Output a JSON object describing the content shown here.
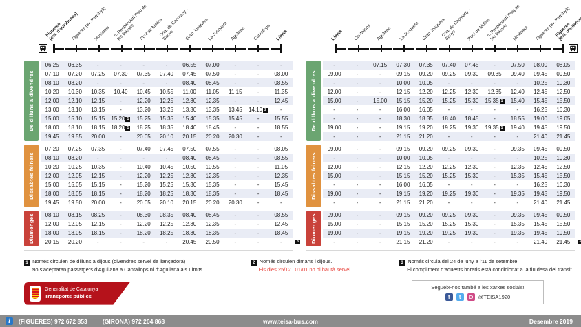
{
  "colors": {
    "weekday": "#6ba571",
    "saturday": "#e0923f",
    "sunday": "#c9423a",
    "stripe": "#e9ecf5",
    "footnote_red": "#e8433c",
    "brand_red": "#b5121b",
    "bar_gray": "#8c8c8c",
    "info_blue": "#2878c8"
  },
  "panels": [
    {
      "direction": "outbound",
      "bus": "left",
      "stops": [
        {
          "t": "Figueres\n(est. d'autobusos)",
          "b": true
        },
        {
          "t": "Figueres (av. Perpinyà)",
          "b": false
        },
        {
          "t": "Hostalets",
          "b": false
        },
        {
          "t": "c. Penitenciari Puig de\nles Basses",
          "b": false
        },
        {
          "t": "Pont de Molins",
          "b": false
        },
        {
          "t": "Crta. de Capmany -\nBanys",
          "b": false
        },
        {
          "t": "Gran Jonquera",
          "b": false
        },
        {
          "t": "La Jonquera",
          "b": false
        },
        {
          "t": "Agullana",
          "b": false
        },
        {
          "t": "Cantallops",
          "b": false
        },
        {
          "t": "Límits",
          "b": true
        }
      ],
      "sections": [
        {
          "key": "weekday",
          "label": "De dilluns a divendres",
          "rows": [
            [
              "06.25",
              "06.35",
              "-",
              "-",
              "-",
              "-",
              "06.55",
              "07.00",
              "-",
              "-",
              "-"
            ],
            [
              "07.10",
              "07.20",
              "07.25",
              "07.30",
              "07.35",
              "07.40",
              "07.45",
              "07.50",
              "-",
              "-",
              "08.00"
            ],
            [
              "08.10",
              "08.20",
              "-",
              "-",
              "-",
              "-",
              "08.40",
              "08.45",
              "-",
              "-",
              "08.55"
            ],
            [
              "10.20",
              "10.30",
              "10.35",
              "10.40",
              "10.45",
              "10.55",
              "11.00",
              "11.05",
              "11.15",
              "-",
              "11.35"
            ],
            [
              "12.00",
              "12.10",
              "12.15",
              "-",
              "12.20",
              "12.25",
              "12.30",
              "12.35",
              "-",
              "-",
              "12.45"
            ],
            [
              "13.00",
              "13.10",
              "13.15",
              "-",
              "13.20",
              "13.25",
              "13.30",
              "13.35",
              "13.45",
              "14.10|2",
              "-"
            ],
            [
              "15.00",
              "15.10",
              "15.15",
              "15.20|1",
              "15.25",
              "15.35",
              "15.40",
              "15.35",
              "15.45",
              "-",
              "15.55"
            ],
            [
              "18.00",
              "18.10",
              "18.15",
              "18.20|1",
              "18.25",
              "18.35",
              "18.40",
              "18.45",
              "-",
              "-",
              "18.55"
            ],
            [
              "19.45",
              "19.55",
              "20.00",
              "-",
              "20.05",
              "20.10",
              "20.15",
              "20.20",
              "20.30",
              "-",
              "-"
            ]
          ]
        },
        {
          "key": "saturday",
          "label": "Dissabtes feiners",
          "rows": [
            [
              "07.20",
              "07.25",
              "07.35",
              "-",
              "07.40",
              "07.45",
              "07.50",
              "07.55",
              "-",
              "-",
              "08.05"
            ],
            [
              "08.10",
              "08.20",
              "-",
              "-",
              "-",
              "-",
              "08.40",
              "08.45",
              "-",
              "-",
              "08.55"
            ],
            [
              "10.20",
              "10.25",
              "10.35",
              "-",
              "10.40",
              "10.45",
              "10.50",
              "10.55",
              "-",
              "-",
              "11.05"
            ],
            [
              "12.00",
              "12.05",
              "12.15",
              "-",
              "12.20",
              "12.25",
              "12.30",
              "12.35",
              "-",
              "-",
              "12.35"
            ],
            [
              "15.00",
              "15.05",
              "15.15",
              "-",
              "15.20",
              "15.25",
              "15.30",
              "15.35",
              "-",
              "-",
              "15.45"
            ],
            [
              "18.00",
              "18.05",
              "18.15",
              "-",
              "18.20",
              "18.25",
              "18.30",
              "18.35",
              "-",
              "-",
              "18.45"
            ],
            [
              "19.45",
              "19.50",
              "20.00",
              "-",
              "20.05",
              "20.10",
              "20.15",
              "20.20",
              "20.30",
              "-",
              "-"
            ]
          ]
        },
        {
          "key": "sunday",
          "label": "Diumenges",
          "end_marker": "3",
          "rows": [
            [
              "08.10",
              "08.15",
              "08.25",
              "-",
              "08.30",
              "08.35",
              "08.40",
              "08.45",
              "-",
              "-",
              "08.55"
            ],
            [
              "12.00",
              "12.05",
              "12.15",
              "-",
              "12.20",
              "12.25",
              "12.30",
              "12.35",
              "-",
              "-",
              "12.45"
            ],
            [
              "18.00",
              "18.05",
              "18.15",
              "-",
              "18.20",
              "18.25",
              "18.30",
              "18.35",
              "-",
              "-",
              "18.45"
            ],
            [
              "20.15",
              "20.20",
              "-",
              "-",
              "-",
              "-",
              "20.45",
              "20.50",
              "-",
              "-",
              "-"
            ]
          ]
        }
      ]
    },
    {
      "direction": "return",
      "bus": "right",
      "stops": [
        {
          "t": "Límits",
          "b": true
        },
        {
          "t": "Cantallops",
          "b": false
        },
        {
          "t": "Agullana",
          "b": false
        },
        {
          "t": "La Jonquera",
          "b": false
        },
        {
          "t": "Gran Jonquera",
          "b": false
        },
        {
          "t": "Crta. de Capmany -\nBanys",
          "b": false
        },
        {
          "t": "Pont de Molins",
          "b": false
        },
        {
          "t": "c. Penitenciari Puig de\nles Basses",
          "b": false
        },
        {
          "t": "Hostalets",
          "b": false
        },
        {
          "t": "Figueres (av. Perpinyà)",
          "b": false
        },
        {
          "t": "Figueres\n(est. d'autobusos)",
          "b": true
        }
      ],
      "sections": [
        {
          "key": "weekday",
          "label": "De dilluns a divendres",
          "rows": [
            [
              "-",
              "-",
              "07.15",
              "07.30",
              "07.35",
              "07.40",
              "07.45",
              "-",
              "07.50",
              "08.00",
              "08.05"
            ],
            [
              "09.00",
              "-",
              "-",
              "09.15",
              "09.20",
              "09.25",
              "09.30",
              "09.35",
              "09.40",
              "09.45",
              "09.50"
            ],
            [
              "-",
              "-",
              "-",
              "10.00",
              "10.05",
              "-",
              "-",
              "-",
              "-",
              "10.25",
              "10.30"
            ],
            [
              "12.00",
              "-",
              "-",
              "12.15",
              "12.20",
              "12.25",
              "12.30",
              "12.35",
              "12.40",
              "12.45",
              "12.50"
            ],
            [
              "15.00",
              "-",
              "15.00",
              "15.15",
              "15.20",
              "15.25",
              "15.30",
              "15.35|1",
              "15.40",
              "15.45",
              "15.50"
            ],
            [
              "-",
              "-",
              "-",
              "16.00",
              "16.05",
              "-",
              "-",
              "-",
              "-",
              "16.25",
              "16.30"
            ],
            [
              "-",
              "-",
              "-",
              "18.30",
              "18.35",
              "18.40",
              "18.45",
              "-",
              "18.55",
              "19.00",
              "19.05"
            ],
            [
              "19.00",
              "-",
              "-",
              "19.15",
              "19.20",
              "19.25",
              "19.30",
              "19.35|1",
              "19.40",
              "19.45",
              "19.50"
            ],
            [
              "-",
              "-",
              "-",
              "21.15",
              "21.20",
              "-",
              "-",
              "-",
              "-",
              "21.40",
              "21.45"
            ]
          ]
        },
        {
          "key": "saturday",
          "label": "Dissabtes feiners",
          "rows": [
            [
              "09.00",
              "-",
              "-",
              "09.15",
              "09.20",
              "09.25",
              "09.30",
              "-",
              "09.35",
              "09.45",
              "09.50"
            ],
            [
              "-",
              "-",
              "-",
              "10.00",
              "10.05",
              "-",
              "-",
              "-",
              "-",
              "10.25",
              "10.30"
            ],
            [
              "12.00",
              "-",
              "-",
              "12.15",
              "12.20",
              "12.25",
              "12.30",
              "-",
              "12.35",
              "12.45",
              "12.50"
            ],
            [
              "15.00",
              "-",
              "-",
              "15.15",
              "15.20",
              "15.25",
              "15.30",
              "-",
              "15.35",
              "15.45",
              "15.50"
            ],
            [
              "-",
              "-",
              "-",
              "16.00",
              "16.05",
              "-",
              "-",
              "-",
              "-",
              "16.25",
              "16.30"
            ],
            [
              "19.00",
              "-",
              "-",
              "19.15",
              "19.20",
              "19.25",
              "19.30",
              "-",
              "19.35",
              "19.45",
              "19.50"
            ],
            [
              "-",
              "-",
              "-",
              "21.15",
              "21.20",
              "-",
              "-",
              "-",
              "-",
              "21.40",
              "21.45"
            ]
          ]
        },
        {
          "key": "sunday",
          "label": "Diumenges",
          "end_marker": "3",
          "rows": [
            [
              "09.00",
              "-",
              "-",
              "09.15",
              "09.20",
              "09.25",
              "09.30",
              "-",
              "09.35",
              "09.45",
              "09.50"
            ],
            [
              "15.00",
              "-",
              "-",
              "15.15",
              "15.20",
              "15.25",
              "15.30",
              "-",
              "15.35",
              "15.45",
              "15.50"
            ],
            [
              "19.00",
              "-",
              "-",
              "19.15",
              "19.20",
              "19.25",
              "19.30",
              "-",
              "19.35",
              "19.45",
              "19.50"
            ],
            [
              "-",
              "-",
              "-",
              "21.15",
              "21.20",
              "-",
              "-",
              "-",
              "-",
              "21.40",
              "21.45"
            ]
          ]
        }
      ]
    }
  ],
  "notes": [
    {
      "num": "1",
      "line1": "Només circulen de dilluns a dijous (divendres servei de llançadora)",
      "line2": "No s'aceptaran passatgers d'Agullana a Cantallops ni d'Agullana als Límits."
    },
    {
      "num": "2",
      "line1": "Només circulen dimarts i dijous.",
      "line2": "Els dies 25/12 i 01/01 no hi haurà servei"
    },
    {
      "num": "3",
      "line1": "Només circula del 24 de juny a l'11 de setembre.",
      "line2": "El compliment d'aquests horaris està condicionat a la fluïdesa del trànsit"
    }
  ],
  "logo": {
    "line1": "Generalitat de Catalunya",
    "line2": "Transports públics"
  },
  "social": {
    "text": "Segueix-nos també a les xarxes socials!",
    "handle": "@TEISA1920",
    "icons": [
      {
        "name": "facebook",
        "glyph": "f",
        "color": "#3b5998"
      },
      {
        "name": "twitter",
        "glyph": "t",
        "color": "#55acee"
      },
      {
        "name": "instagram",
        "glyph": "⊙",
        "color": "#cf4a86"
      }
    ]
  },
  "footer": {
    "info_glyph": "i",
    "phone_figueres": "(FIGUERES) 972 672 853",
    "phone_girona": "(GIRONA) 972 204 868",
    "website": "www.teisa-bus.com",
    "date": "Desembre 2019"
  }
}
